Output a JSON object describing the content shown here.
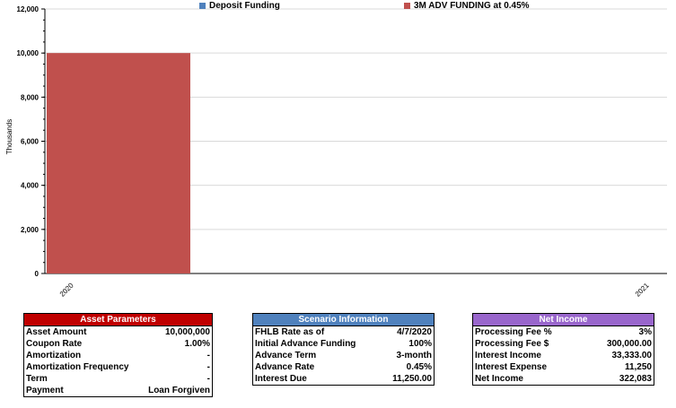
{
  "chart_data": {
    "type": "bar",
    "stacked": true,
    "categories": [
      "2020",
      "2021"
    ],
    "series": [
      {
        "name": "Deposit Funding",
        "values": [
          0,
          0
        ],
        "color": "#4f81bd"
      },
      {
        "name": "3M ADV FUNDING at 0.45%",
        "values": [
          10000,
          0
        ],
        "color": "#c0504d"
      }
    ],
    "ylabel": "Thousands",
    "ylim": [
      0,
      12000
    ],
    "yticks": [
      "0",
      "2,000",
      "4,000",
      "6,000",
      "8,000",
      "10,000",
      "12,000"
    ],
    "ytick_values": [
      0,
      2000,
      4000,
      6000,
      8000,
      10000,
      12000
    ],
    "grid": true,
    "legend_position": "top"
  },
  "panels": {
    "asset": {
      "title": "Asset Parameters",
      "header_color": "#c00000",
      "rows": [
        {
          "label": "Asset Amount",
          "value": "10,000,000"
        },
        {
          "label": "Coupon Rate",
          "value": "1.00%"
        },
        {
          "label": "Amortization",
          "value": "-"
        },
        {
          "label": "Amortization Frequency",
          "value": "-"
        },
        {
          "label": "Term",
          "value": "-"
        },
        {
          "label": "Payment",
          "value": "Loan Forgiven"
        }
      ]
    },
    "scenario": {
      "title": "Scenario Information",
      "header_color": "#4f81bd",
      "rows": [
        {
          "label": "FHLB Rate as of",
          "value": "4/7/2020"
        },
        {
          "label": "Initial Advance Funding",
          "value": "100%"
        },
        {
          "label": "Advance Term",
          "value": "3-month"
        },
        {
          "label": "Advance Rate",
          "value": "0.45%"
        },
        {
          "label": "Interest Due",
          "value": "11,250.00"
        }
      ]
    },
    "income": {
      "title": "Net Income",
      "header_color": "#9966cc",
      "rows": [
        {
          "label": "Processing Fee %",
          "value": "3%"
        },
        {
          "label": "Processing Fee $",
          "value": "300,000.00"
        },
        {
          "label": "Interest Income",
          "value": "33,333.00"
        },
        {
          "label": "Interest Expense",
          "value": "11,250"
        },
        {
          "label": "Net Income",
          "value": "322,083"
        }
      ]
    }
  }
}
